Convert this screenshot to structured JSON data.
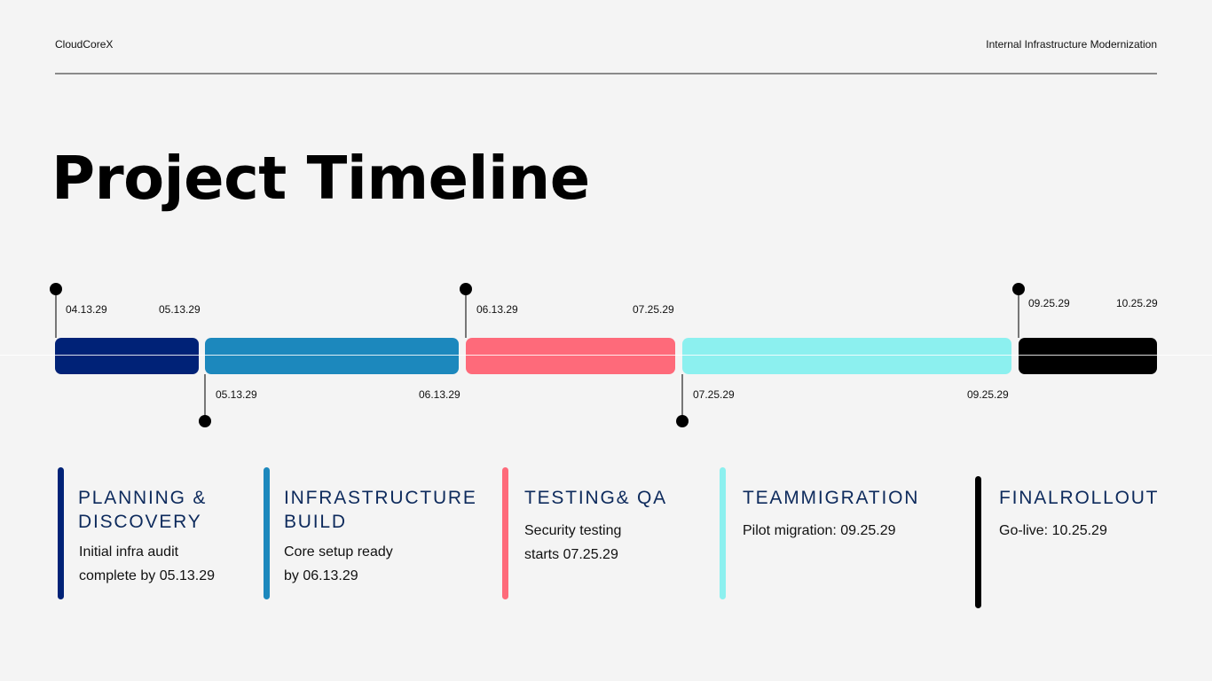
{
  "header": {
    "brand": "CloudCoreX",
    "project": "Internal Infrastructure Modernization"
  },
  "title": "Project Timeline",
  "colors": {
    "navy": "#002277",
    "blue": "#1c88bd",
    "coral": "#fe6a7a",
    "aqua": "#8cf0ef",
    "black": "#000000",
    "title_text": "#0d2a5c"
  },
  "timeline": {
    "phases": [
      {
        "start": "04.13.29",
        "end": "05.13.29"
      },
      {
        "start": "05.13.29",
        "end": "06.13.29"
      },
      {
        "start": "06.13.29",
        "end": "07.25.29"
      },
      {
        "start": "07.25.29",
        "end": "09.25.29"
      },
      {
        "start": "09.25.29",
        "end": "10.25.29"
      }
    ]
  },
  "cards": [
    {
      "title_line1": "PLANNING &",
      "title_line2": "DISCOVERY",
      "desc_line1": "Initial infra audit",
      "desc_line2": "complete by 05.13.29"
    },
    {
      "title_line1": "INFRASTRUCTURE",
      "title_line2": "BUILD",
      "desc_line1": "Core setup ready",
      "desc_line2": "by 06.13.29"
    },
    {
      "title_line1": "TESTING& QA",
      "desc_line1": "Security testing",
      "desc_line2": "starts 07.25.29"
    },
    {
      "title_line1": "TEAMMIGRATION",
      "desc_line1": "Pilot migration: 09.25.29"
    },
    {
      "title_line1": "FINALROLLOUT",
      "desc_line1": "Go-live: 10.25.29"
    }
  ]
}
